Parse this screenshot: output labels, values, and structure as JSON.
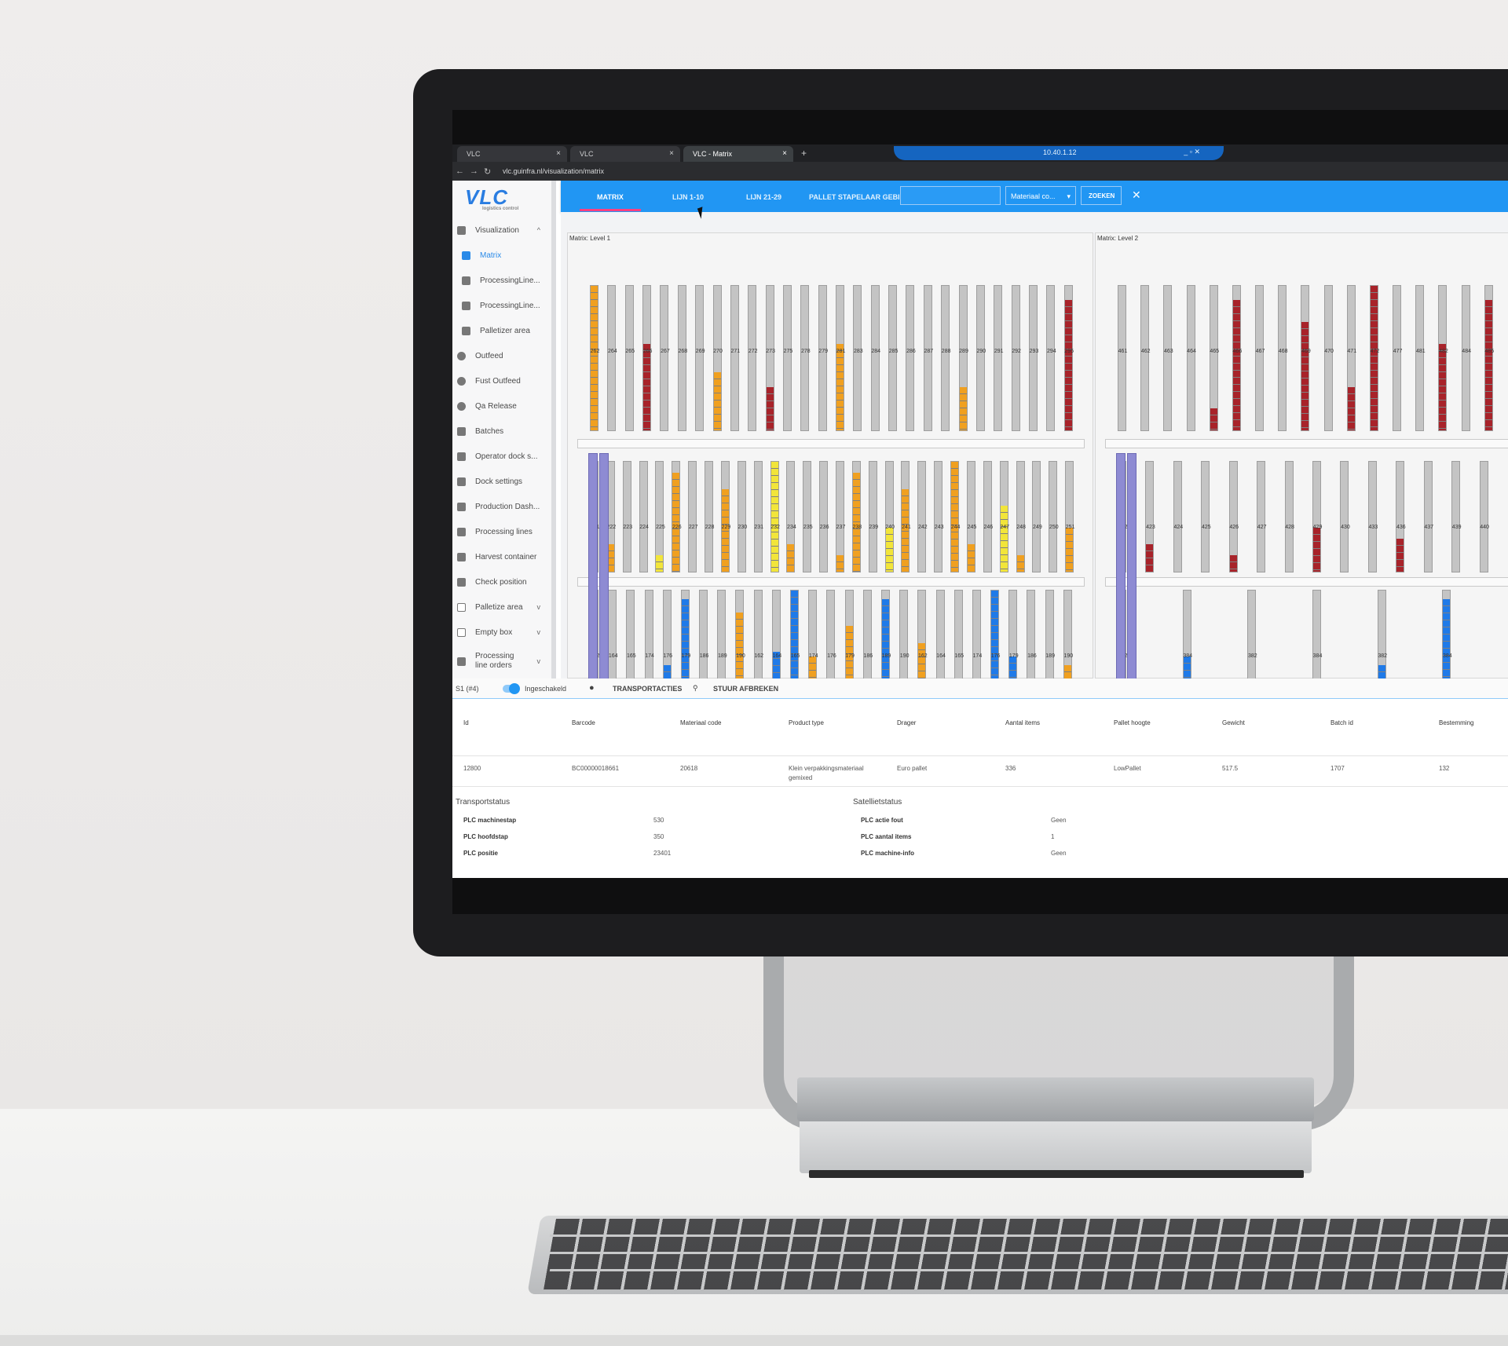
{
  "browser": {
    "tabs": [
      {
        "label": "VLC",
        "close": "×"
      },
      {
        "label": "VLC",
        "close": "×"
      },
      {
        "label": "VLC - Matrix",
        "close": "×"
      }
    ],
    "new_tab": "+",
    "remote_label": "10.40.1.12",
    "remote_controls": "_ ▫ ✕",
    "url": "vlc.guinfra.nl/visualization/matrix"
  },
  "brand": {
    "logo_text": "VLC",
    "logo_subtext": "logistics control",
    "accent": "#2196f3",
    "pink": "#ff4081"
  },
  "sidebar": {
    "items": [
      {
        "label": "Visualization",
        "chevron": "^",
        "icon": "store-icon"
      },
      {
        "label": "Matrix",
        "icon": "store-icon"
      },
      {
        "label": "ProcessingLine...",
        "icon": "store-icon"
      },
      {
        "label": "ProcessingLine...",
        "icon": "store-icon"
      },
      {
        "label": "Palletizer area",
        "icon": "store-icon"
      },
      {
        "label": "Outfeed",
        "icon": "alert-icon"
      },
      {
        "label": "Fust Outfeed",
        "icon": "alert-icon"
      },
      {
        "label": "Qa Release",
        "icon": "alert-icon"
      },
      {
        "label": "Batches",
        "icon": "list-icon"
      },
      {
        "label": "Operator dock s...",
        "icon": "help-icon"
      },
      {
        "label": "Dock settings",
        "icon": "help-icon"
      },
      {
        "label": "Production Dash...",
        "icon": "dashboard-icon"
      },
      {
        "label": "Processing lines",
        "icon": "list-icon"
      },
      {
        "label": "Harvest container",
        "icon": "basket-icon"
      },
      {
        "label": "Check position",
        "icon": "cart-icon"
      },
      {
        "label": "Palletize area",
        "chevron": "v",
        "icon": "checkbox-icon"
      },
      {
        "label": "Empty box",
        "chevron": "v",
        "icon": "checkbox-icon"
      },
      {
        "label": "Processing line orders",
        "chevron": "v",
        "icon": "table-icon"
      }
    ]
  },
  "topnav": {
    "tabs": [
      "MATRIX",
      "LIJN 1-10",
      "LIJN 21-29",
      "PALLET STAPELAAR GEBIED"
    ],
    "search_value": "",
    "select_value": "Materiaal co...",
    "search_button": "ZOEKEN",
    "close": "✕"
  },
  "matrix": {
    "level1": {
      "title": "Matrix: Level 1",
      "top_labels": [
        "262",
        "264",
        "265",
        "266",
        "267",
        "268",
        "269",
        "270",
        "271",
        "272",
        "273",
        "275",
        "278",
        "279",
        "281",
        "283",
        "284",
        "285",
        "286",
        "287",
        "288",
        "289",
        "290",
        "291",
        "292",
        "293",
        "294",
        "295"
      ],
      "mid_labels": [
        "221",
        "222",
        "223",
        "224",
        "225",
        "226",
        "227",
        "228",
        "229",
        "230",
        "231",
        "232",
        "234",
        "235",
        "236",
        "237",
        "238",
        "239",
        "240",
        "241",
        "242",
        "243",
        "244",
        "245",
        "246",
        "247",
        "248",
        "249",
        "250",
        "251"
      ],
      "low_labels": [
        "162",
        "164",
        "165",
        "174",
        "176",
        "179",
        "186",
        "189",
        "190"
      ]
    },
    "level2": {
      "title": "Matrix: Level 2",
      "top_labels": [
        "461",
        "462",
        "463",
        "464",
        "465",
        "466",
        "467",
        "468",
        "469",
        "470",
        "471",
        "472",
        "477",
        "481",
        "482",
        "484",
        "485"
      ],
      "mid_labels": [
        "422",
        "423",
        "424",
        "425",
        "426",
        "427",
        "428",
        "429",
        "430",
        "433",
        "436",
        "437",
        "439",
        "440"
      ],
      "low_labels": [
        "382",
        "384"
      ]
    },
    "colors": {
      "orange": "#f0a020",
      "red": "#a8232a",
      "gray": "#c4c4c4",
      "yellow": "#f2e53a",
      "blue": "#1f7ae8",
      "purple": "#8e8bd3"
    }
  },
  "statusbar": {
    "station": "S1 (#4)",
    "toggle_label": "Ingeschakeld",
    "transport_label": "TRANSPORTACTIES",
    "stop_label": "STUUR AFBREKEN"
  },
  "table": {
    "columns": [
      "Id",
      "Barcode",
      "Materiaal code",
      "Product type",
      "Drager",
      "Aantal items",
      "Pallet hoogte",
      "Gewicht",
      "Batch id",
      "Bestemming"
    ],
    "row": [
      "12800",
      "BC00000018661",
      "20618",
      "Klein verpakkingsmateriaal gemixed",
      "Euro pallet",
      "336",
      "LowPallet",
      "517.5",
      "1707",
      "132"
    ]
  },
  "transportstatus": {
    "title": "Transportstatus",
    "rows": [
      {
        "label": "PLC machinestap",
        "value": "530"
      },
      {
        "label": "PLC hoofdstap",
        "value": "350"
      },
      {
        "label": "PLC positie",
        "value": "23401"
      }
    ]
  },
  "satellietstatus": {
    "title": "Satellietstatus",
    "rows": [
      {
        "label": "PLC actie fout",
        "value": "Geen"
      },
      {
        "label": "PLC aantal items",
        "value": "1"
      },
      {
        "label": "PLC machine-info",
        "value": "Geen"
      }
    ]
  }
}
